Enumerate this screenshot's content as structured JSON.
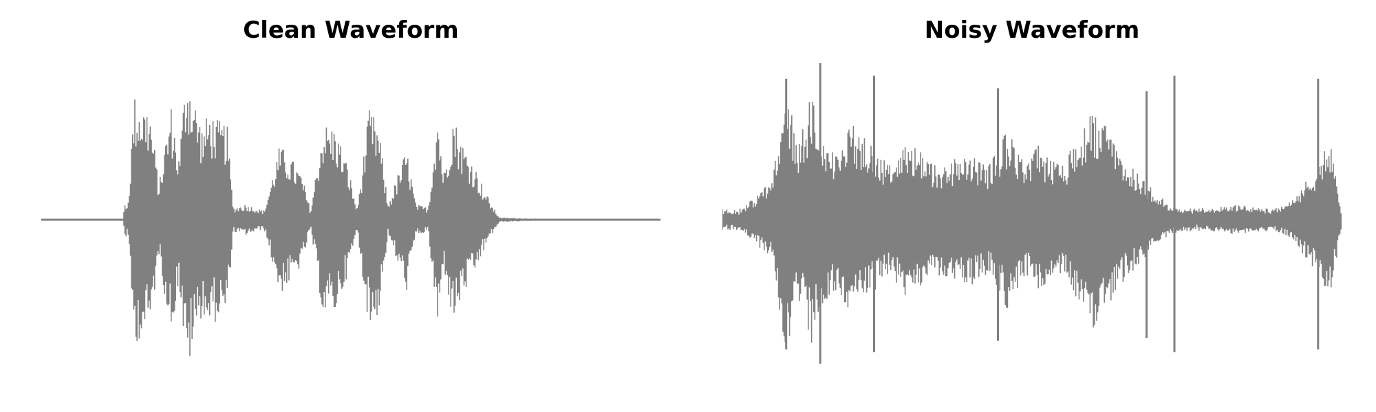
{
  "wave_color": "#808080",
  "chart_data": [
    {
      "type": "line",
      "title": "Clean Waveform",
      "axes_visible": false,
      "xlabel": "",
      "ylabel": "",
      "x_range": [
        0,
        1
      ],
      "ylim": [
        -1,
        1
      ],
      "baseline": 0,
      "envelope": [
        [
          0.0,
          0.003
        ],
        [
          0.132,
          0.003
        ],
        [
          0.135,
          0.12
        ],
        [
          0.14,
          0.1
        ],
        [
          0.15,
          0.8
        ],
        [
          0.16,
          0.76
        ],
        [
          0.175,
          0.72
        ],
        [
          0.185,
          0.4
        ],
        [
          0.19,
          0.22
        ],
        [
          0.2,
          0.5
        ],
        [
          0.21,
          0.74
        ],
        [
          0.222,
          0.4
        ],
        [
          0.235,
          1.0
        ],
        [
          0.245,
          0.82
        ],
        [
          0.26,
          0.6
        ],
        [
          0.272,
          0.7
        ],
        [
          0.285,
          0.64
        ],
        [
          0.3,
          0.62
        ],
        [
          0.31,
          0.08
        ],
        [
          0.33,
          0.1
        ],
        [
          0.36,
          0.06
        ],
        [
          0.385,
          0.48
        ],
        [
          0.4,
          0.42
        ],
        [
          0.42,
          0.3
        ],
        [
          0.435,
          0.06
        ],
        [
          0.455,
          0.62
        ],
        [
          0.475,
          0.6
        ],
        [
          0.495,
          0.35
        ],
        [
          0.51,
          0.07
        ],
        [
          0.53,
          0.72
        ],
        [
          0.545,
          0.6
        ],
        [
          0.56,
          0.1
        ],
        [
          0.59,
          0.46
        ],
        [
          0.605,
          0.1
        ],
        [
          0.625,
          0.08
        ],
        [
          0.64,
          0.72
        ],
        [
          0.65,
          0.3
        ],
        [
          0.665,
          0.68
        ],
        [
          0.68,
          0.5
        ],
        [
          0.7,
          0.35
        ],
        [
          0.715,
          0.2
        ],
        [
          0.73,
          0.08
        ],
        [
          0.74,
          0.015
        ],
        [
          0.82,
          0.004
        ],
        [
          1.0,
          0.003
        ]
      ]
    },
    {
      "type": "line",
      "title": "Noisy Waveform",
      "axes_visible": false,
      "xlabel": "",
      "ylabel": "",
      "x_range": [
        0,
        1
      ],
      "ylim": [
        -1,
        1
      ],
      "baseline": 0,
      "noise_floor": 0.05,
      "envelope": [
        [
          0.0,
          0.02
        ],
        [
          0.03,
          0.06
        ],
        [
          0.08,
          0.26
        ],
        [
          0.103,
          0.92
        ],
        [
          0.12,
          0.46
        ],
        [
          0.145,
          0.82
        ],
        [
          0.165,
          0.52
        ],
        [
          0.185,
          0.45
        ],
        [
          0.21,
          0.62
        ],
        [
          0.24,
          0.48
        ],
        [
          0.27,
          0.35
        ],
        [
          0.3,
          0.52
        ],
        [
          0.34,
          0.35
        ],
        [
          0.37,
          0.38
        ],
        [
          0.4,
          0.43
        ],
        [
          0.43,
          0.35
        ],
        [
          0.46,
          0.58
        ],
        [
          0.49,
          0.35
        ],
        [
          0.51,
          0.48
        ],
        [
          0.53,
          0.38
        ],
        [
          0.55,
          0.35
        ],
        [
          0.575,
          0.55
        ],
        [
          0.6,
          0.7
        ],
        [
          0.62,
          0.6
        ],
        [
          0.65,
          0.38
        ],
        [
          0.69,
          0.22
        ],
        [
          0.72,
          0.1
        ],
        [
          0.76,
          0.05
        ],
        [
          0.8,
          0.08
        ],
        [
          0.84,
          0.1
        ],
        [
          0.88,
          0.05
        ],
        [
          0.92,
          0.12
        ],
        [
          0.96,
          0.35
        ],
        [
          0.98,
          0.55
        ],
        [
          1.0,
          0.05
        ]
      ],
      "spikes": [
        [
          0.103,
          0.9
        ],
        [
          0.158,
          1.0
        ],
        [
          0.245,
          0.92
        ],
        [
          0.445,
          0.84
        ],
        [
          0.685,
          0.82
        ],
        [
          0.73,
          0.92
        ],
        [
          0.962,
          0.9
        ]
      ]
    }
  ]
}
